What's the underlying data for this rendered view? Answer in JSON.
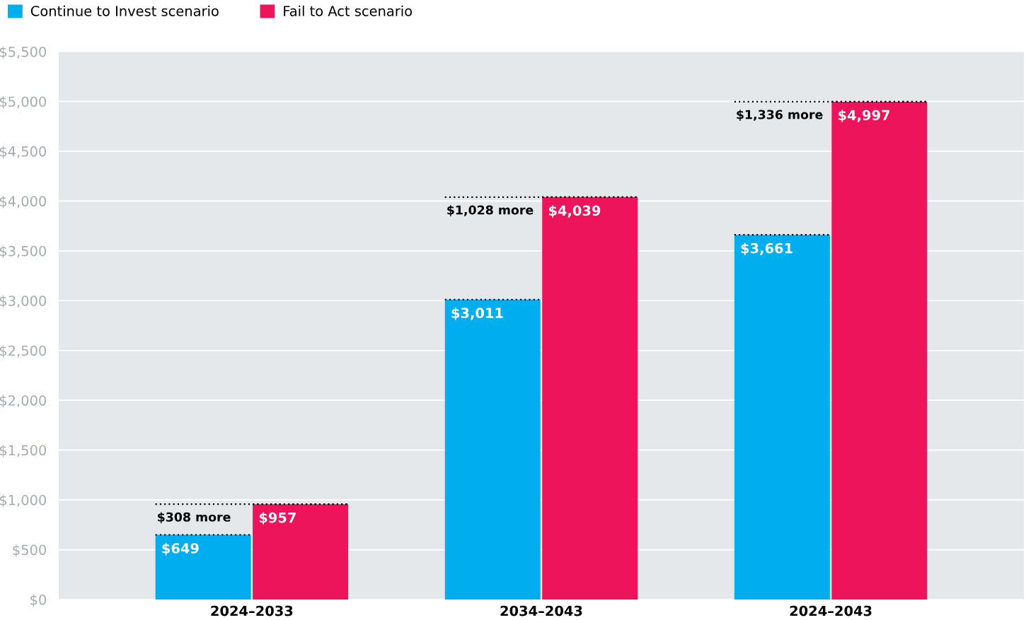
{
  "chart_data": {
    "type": "bar",
    "categories": [
      "2024–2033",
      "2034–2043",
      "2024–2043"
    ],
    "series": [
      {
        "name": "Continue to Invest scenario",
        "color": "#00aeef",
        "values": [
          649,
          3011,
          3661
        ],
        "value_labels": [
          "$649",
          "$3,011",
          "$3,661"
        ]
      },
      {
        "name": "Fail to Act scenario",
        "color": "#ed145b",
        "values": [
          957,
          4039,
          4997
        ],
        "value_labels": [
          "$957",
          "$4,039",
          "$4,997"
        ]
      }
    ],
    "annotations": [
      {
        "text": "$308 more",
        "x": "2024–2033",
        "y": 957
      },
      {
        "text": "$1,028 more",
        "x": "2034–2043",
        "y": 4039
      },
      {
        "text": "$1,336 more",
        "x": "2024–2043",
        "y": 4997
      }
    ],
    "ylim": [
      0,
      5500
    ],
    "yticks": [
      {
        "value": 0,
        "label": "$0"
      },
      {
        "value": 500,
        "label": "$500"
      },
      {
        "value": 1000,
        "label": "$1,000"
      },
      {
        "value": 1500,
        "label": "$1,500"
      },
      {
        "value": 2000,
        "label": "$2,000"
      },
      {
        "value": 2500,
        "label": "$2,500"
      },
      {
        "value": 3000,
        "label": "$3,000"
      },
      {
        "value": 3500,
        "label": "$3,500"
      },
      {
        "value": 4000,
        "label": "$4,000"
      },
      {
        "value": 4500,
        "label": "$4,500"
      },
      {
        "value": 5000,
        "label": "$5,000"
      },
      {
        "value": 5500,
        "label": "$5,500"
      }
    ],
    "grid": "y",
    "legend": "top left"
  }
}
